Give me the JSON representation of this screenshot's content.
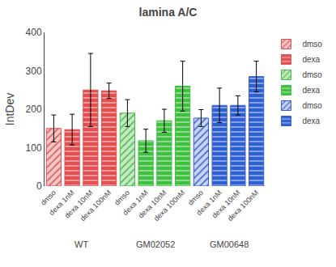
{
  "chart_data": {
    "type": "bar",
    "title": "lamina A/C",
    "ylabel": "IntDev",
    "categories": [
      "dmso",
      "dexa 1nM",
      "dexa 10nM",
      "dexa 100nM",
      "dmso",
      "dexa 1nM",
      "dexa 10nM",
      "dexa 100nM",
      "dmso",
      "dexa 1nM",
      "dexa 10nM",
      "dexa 100nM"
    ],
    "series": [
      {
        "name": "dmso",
        "color": "#f0c8c8",
        "values": [
          150,
          null,
          null,
          null,
          null,
          null,
          null,
          null,
          null,
          null,
          null,
          null
        ],
        "errors": [
          35,
          null,
          null,
          null,
          null,
          null,
          null,
          null,
          null,
          null,
          null,
          null
        ]
      },
      {
        "name": "dexa",
        "color": "#e05050",
        "values": [
          null,
          147,
          250,
          248,
          null,
          null,
          null,
          null,
          null,
          null,
          null,
          null
        ],
        "errors": [
          null,
          40,
          95,
          20,
          null,
          null,
          null,
          null,
          null,
          null,
          null,
          null
        ]
      },
      {
        "name": "dmso",
        "color": "#c8e6c8",
        "values": [
          null,
          null,
          null,
          null,
          190,
          null,
          null,
          null,
          null,
          null,
          null,
          null
        ],
        "errors": [
          null,
          null,
          null,
          null,
          35,
          null,
          null,
          null,
          null,
          null,
          null,
          null
        ]
      },
      {
        "name": "dexa",
        "color": "#40c040",
        "values": [
          null,
          null,
          null,
          null,
          null,
          118,
          170,
          260,
          null,
          null,
          null,
          null
        ],
        "errors": [
          null,
          null,
          null,
          null,
          null,
          30,
          30,
          65,
          null,
          null,
          null,
          null
        ]
      },
      {
        "name": "dmso",
        "color": "#c8d4f0",
        "values": [
          null,
          null,
          null,
          null,
          null,
          null,
          null,
          null,
          177,
          null,
          null,
          null
        ],
        "errors": [
          null,
          null,
          null,
          null,
          null,
          null,
          null,
          null,
          22,
          null,
          null,
          null
        ]
      },
      {
        "name": "dexa",
        "color": "#3060d0",
        "values": [
          null,
          null,
          null,
          null,
          null,
          null,
          null,
          null,
          null,
          210,
          210,
          285
        ],
        "errors": [
          null,
          null,
          null,
          null,
          null,
          null,
          null,
          null,
          null,
          45,
          25,
          40
        ]
      }
    ],
    "annotations": [
      "WT",
      "GM02052",
      "GM00648"
    ],
    "ylim": [
      0,
      400
    ],
    "yticks": [
      0,
      100,
      200,
      300,
      400
    ],
    "grid": false,
    "legend": "upper right"
  }
}
